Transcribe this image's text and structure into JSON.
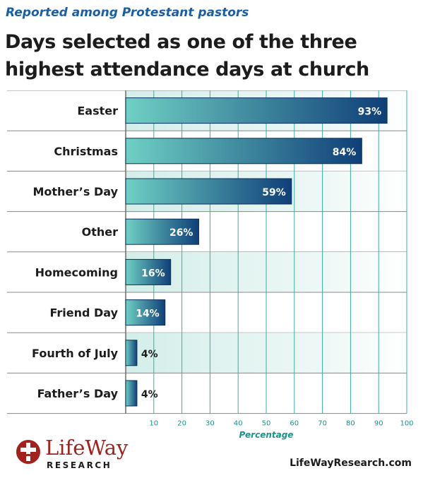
{
  "header": {
    "subtitle": "Reported among Protestant pastors",
    "title": "Days selected as one of the three highest attendance days at church"
  },
  "chart_data": {
    "type": "bar",
    "orientation": "horizontal",
    "title": "Days selected as one of the three highest attendance days at church",
    "subtitle": "Reported among Protestant pastors",
    "categories": [
      "Easter",
      "Christmas",
      "Mother’s Day",
      "Other",
      "Homecoming",
      "Friend Day",
      "Fourth of July",
      "Father’s Day"
    ],
    "values": [
      93,
      84,
      59,
      26,
      16,
      14,
      4,
      4
    ],
    "value_labels": [
      "93%",
      "84%",
      "59%",
      "26%",
      "16%",
      "14%",
      "4%",
      "4%"
    ],
    "xlabel": "Percentage",
    "ylabel": "",
    "xlim": [
      0,
      100
    ],
    "xticks": [
      10,
      20,
      30,
      40,
      50,
      60,
      70,
      80,
      90,
      100
    ],
    "grid": true,
    "legend": "none"
  },
  "colors": {
    "bar_start": "#6fd0c4",
    "bar_end": "#0f3f78",
    "grid": "#34b1a3",
    "axis_label": "#1a9486",
    "subtitle": "#1a5fa6",
    "brand_red": "#a3211d",
    "row_divider": "#8a8a8a"
  },
  "footer": {
    "logo_name": "LifeWay",
    "logo_sub": "RESEARCH",
    "logo_icon": "cross-emblem-icon",
    "website": "LifeWayResearch.com"
  }
}
